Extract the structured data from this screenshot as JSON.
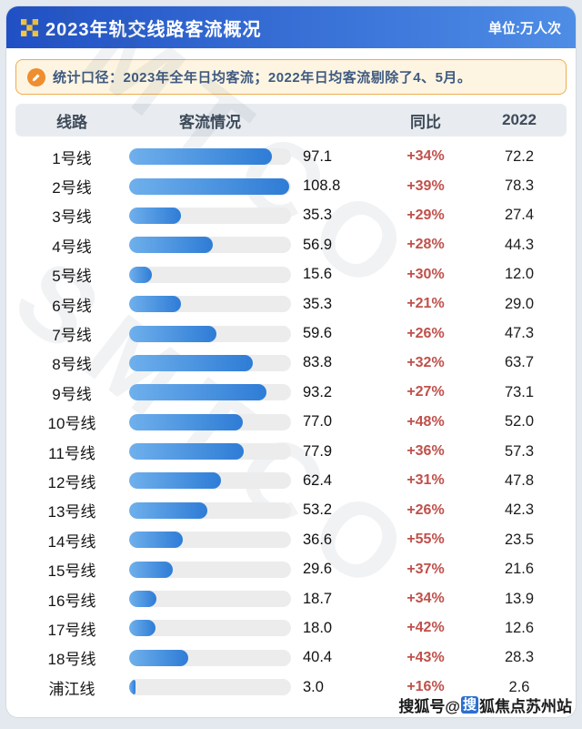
{
  "colors": {
    "header_gradient_left": "#2050c4",
    "header_gradient_right": "#4e8de6",
    "bar_gradient_left": "#6fb0ec",
    "bar_gradient_right": "#2e7cd6",
    "yoy_color": "#c0504a"
  },
  "header": {
    "title": "2023年轨交线路客流概况",
    "unit": "单位:万人次"
  },
  "note": {
    "text": "统计口径：2023年全年日均客流；2022年日均客流剔除了4、5月。"
  },
  "columns": {
    "line": "线路",
    "flow": "客流情况",
    "yoy": "同比",
    "prev": "2022"
  },
  "chart_data": {
    "type": "bar",
    "title": "2023年轨交线路客流概况",
    "unit": "万人次",
    "orientation": "horizontal",
    "scale_max": 110,
    "categories": [
      "1号线",
      "2号线",
      "3号线",
      "4号线",
      "5号线",
      "6号线",
      "7号线",
      "8号线",
      "9号线",
      "10号线",
      "11号线",
      "12号线",
      "13号线",
      "14号线",
      "15号线",
      "16号线",
      "17号线",
      "18号线",
      "浦江线"
    ],
    "series": [
      {
        "name": "2023年全年日均客流",
        "values": [
          97.1,
          108.8,
          35.3,
          56.9,
          15.6,
          35.3,
          59.6,
          83.8,
          93.2,
          77.0,
          77.9,
          62.4,
          53.2,
          36.6,
          29.6,
          18.7,
          18.0,
          40.4,
          3.0
        ]
      },
      {
        "name": "同比",
        "values": [
          "+34%",
          "+39%",
          "+29%",
          "+28%",
          "+30%",
          "+21%",
          "+26%",
          "+32%",
          "+27%",
          "+48%",
          "+36%",
          "+31%",
          "+26%",
          "+55%",
          "+37%",
          "+34%",
          "+42%",
          "+43%",
          "+16%"
        ]
      },
      {
        "name": "2022",
        "values": [
          72.2,
          78.3,
          27.4,
          44.3,
          12.0,
          29.0,
          47.3,
          63.7,
          73.1,
          52.0,
          57.3,
          47.8,
          42.3,
          23.5,
          21.6,
          13.9,
          12.6,
          28.3,
          2.6
        ]
      }
    ]
  },
  "watermark": {
    "text": "SMTCO",
    "footer_prefix": "搜狐号@",
    "footer_badge": "搜",
    "footer_suffix": "狐焦点苏州站"
  }
}
